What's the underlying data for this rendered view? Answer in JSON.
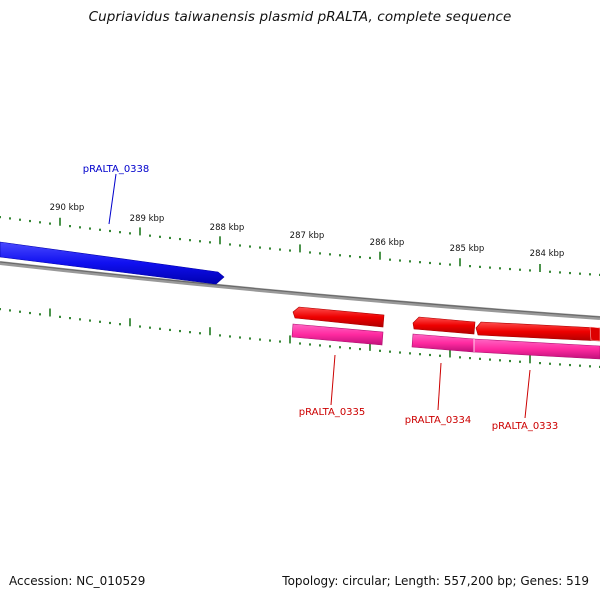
{
  "title": "Cupriavidus taiwanensis plasmid pRALTA, complete sequence",
  "footer": {
    "accession": "Accession: NC_010529",
    "summary": "Topology: circular; Length: 557,200 bp; Genes: 519"
  },
  "kbp_labels": [
    "290 kbp",
    "289 kbp",
    "288 kbp",
    "287 kbp",
    "286 kbp",
    "285 kbp",
    "284 kbp"
  ],
  "genes": [
    {
      "id": "pRALTA_0338",
      "color": "#0000cc"
    },
    {
      "id": "pRALTA_0335",
      "color": "#cc0000"
    },
    {
      "id": "pRALTA_0334",
      "color": "#cc0000"
    },
    {
      "id": "pRALTA_0333",
      "color": "#cc0000"
    }
  ],
  "colors": {
    "forward_cds": "#1a1aff",
    "reverse_cds": "#ee0000",
    "reverse_cds_second_track": "#ff33aa",
    "backbone": "#888888",
    "tick": "#1f7a1f"
  }
}
